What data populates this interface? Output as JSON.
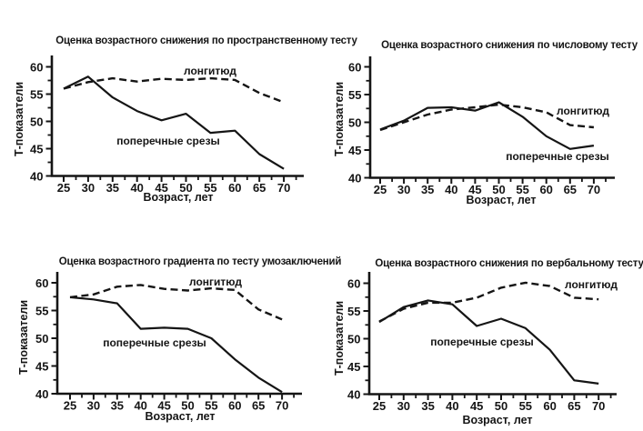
{
  "figure": {
    "background_color": "#ffffff",
    "ink_color": "#151515"
  },
  "chart_data": [
    {
      "type": "line",
      "title": "Оценка возрастного снижения по пространственному тесту",
      "xlabel": "Возраст, лет",
      "ylabel": "Т-показатели",
      "x": [
        25,
        30,
        35,
        40,
        45,
        50,
        55,
        60,
        65,
        70
      ],
      "xticks": [
        25,
        30,
        35,
        40,
        45,
        50,
        55,
        60,
        65,
        70
      ],
      "yticks": [
        40,
        45,
        50,
        55,
        60
      ],
      "ylim": [
        40,
        62
      ],
      "grid": false,
      "legend_position": "inline-curve-labels",
      "series": [
        {
          "name": "лонгитюд",
          "style": "dashed",
          "values": [
            56.0,
            57.2,
            57.9,
            57.3,
            57.8,
            57.6,
            57.9,
            57.6,
            55.2,
            53.5
          ]
        },
        {
          "name": "поперечные срезы",
          "style": "solid",
          "values": [
            56.0,
            58.2,
            54.4,
            51.9,
            50.2,
            51.4,
            47.9,
            48.3,
            44.0,
            41.3
          ]
        }
      ]
    },
    {
      "type": "line",
      "title": "Оценка возрастного снижения по числовому тесту",
      "xlabel": "Возраст, лет",
      "ylabel": "Т-показатели",
      "x": [
        25,
        30,
        35,
        40,
        45,
        50,
        55,
        60,
        65,
        70
      ],
      "xticks": [
        25,
        30,
        35,
        40,
        45,
        50,
        55,
        60,
        65,
        70
      ],
      "yticks": [
        40,
        45,
        50,
        55,
        60
      ],
      "ylim": [
        40,
        62
      ],
      "grid": false,
      "legend_position": "inline-curve-labels",
      "series": [
        {
          "name": "лонгитюд",
          "style": "dashed",
          "values": [
            48.6,
            50.0,
            51.4,
            52.3,
            52.7,
            53.2,
            52.7,
            51.8,
            49.5,
            49.1
          ]
        },
        {
          "name": "поперечные срезы",
          "style": "solid",
          "values": [
            48.7,
            50.3,
            52.6,
            52.7,
            52.1,
            53.6,
            51.0,
            47.5,
            45.2,
            45.8
          ]
        }
      ]
    },
    {
      "type": "line",
      "title": "Оценка возрастного градиента по тесту умозаключений",
      "xlabel": "Возраст, лет",
      "ylabel": "Т-показатели",
      "x": [
        25,
        30,
        35,
        40,
        45,
        50,
        55,
        60,
        65,
        70
      ],
      "xticks": [
        25,
        30,
        35,
        40,
        45,
        50,
        55,
        60,
        65,
        70
      ],
      "yticks": [
        40,
        45,
        50,
        55,
        60
      ],
      "ylim": [
        40,
        62
      ],
      "grid": false,
      "legend_position": "inline-curve-labels",
      "series": [
        {
          "name": "лонгитюд",
          "style": "dashed",
          "values": [
            57.4,
            57.9,
            59.3,
            59.6,
            58.9,
            58.6,
            59.0,
            58.7,
            55.2,
            53.4
          ]
        },
        {
          "name": "поперечные срезы",
          "style": "solid",
          "values": [
            57.4,
            57.0,
            56.3,
            51.7,
            51.9,
            51.7,
            50.0,
            46.2,
            42.9,
            40.3
          ]
        }
      ]
    },
    {
      "type": "line",
      "title": "Оценка возрастного снижения по вербальному тесту",
      "xlabel": "Возраст, лет",
      "ylabel": "Т-показатели",
      "x": [
        25,
        30,
        35,
        40,
        45,
        50,
        55,
        60,
        65,
        70
      ],
      "xticks": [
        25,
        30,
        35,
        40,
        45,
        50,
        55,
        60,
        65,
        70
      ],
      "yticks": [
        40,
        45,
        50,
        55,
        60
      ],
      "ylim": [
        40,
        62
      ],
      "grid": false,
      "legend_position": "inline-curve-labels",
      "series": [
        {
          "name": "лонгитюд",
          "style": "dashed",
          "values": [
            53.1,
            55.4,
            56.5,
            56.5,
            57.4,
            59.2,
            60.1,
            59.5,
            57.4,
            57.1
          ]
        },
        {
          "name": "поперечные срезы",
          "style": "solid",
          "values": [
            53.0,
            55.7,
            56.9,
            56.2,
            52.3,
            53.6,
            51.9,
            48.0,
            42.5,
            41.9
          ]
        }
      ]
    }
  ]
}
